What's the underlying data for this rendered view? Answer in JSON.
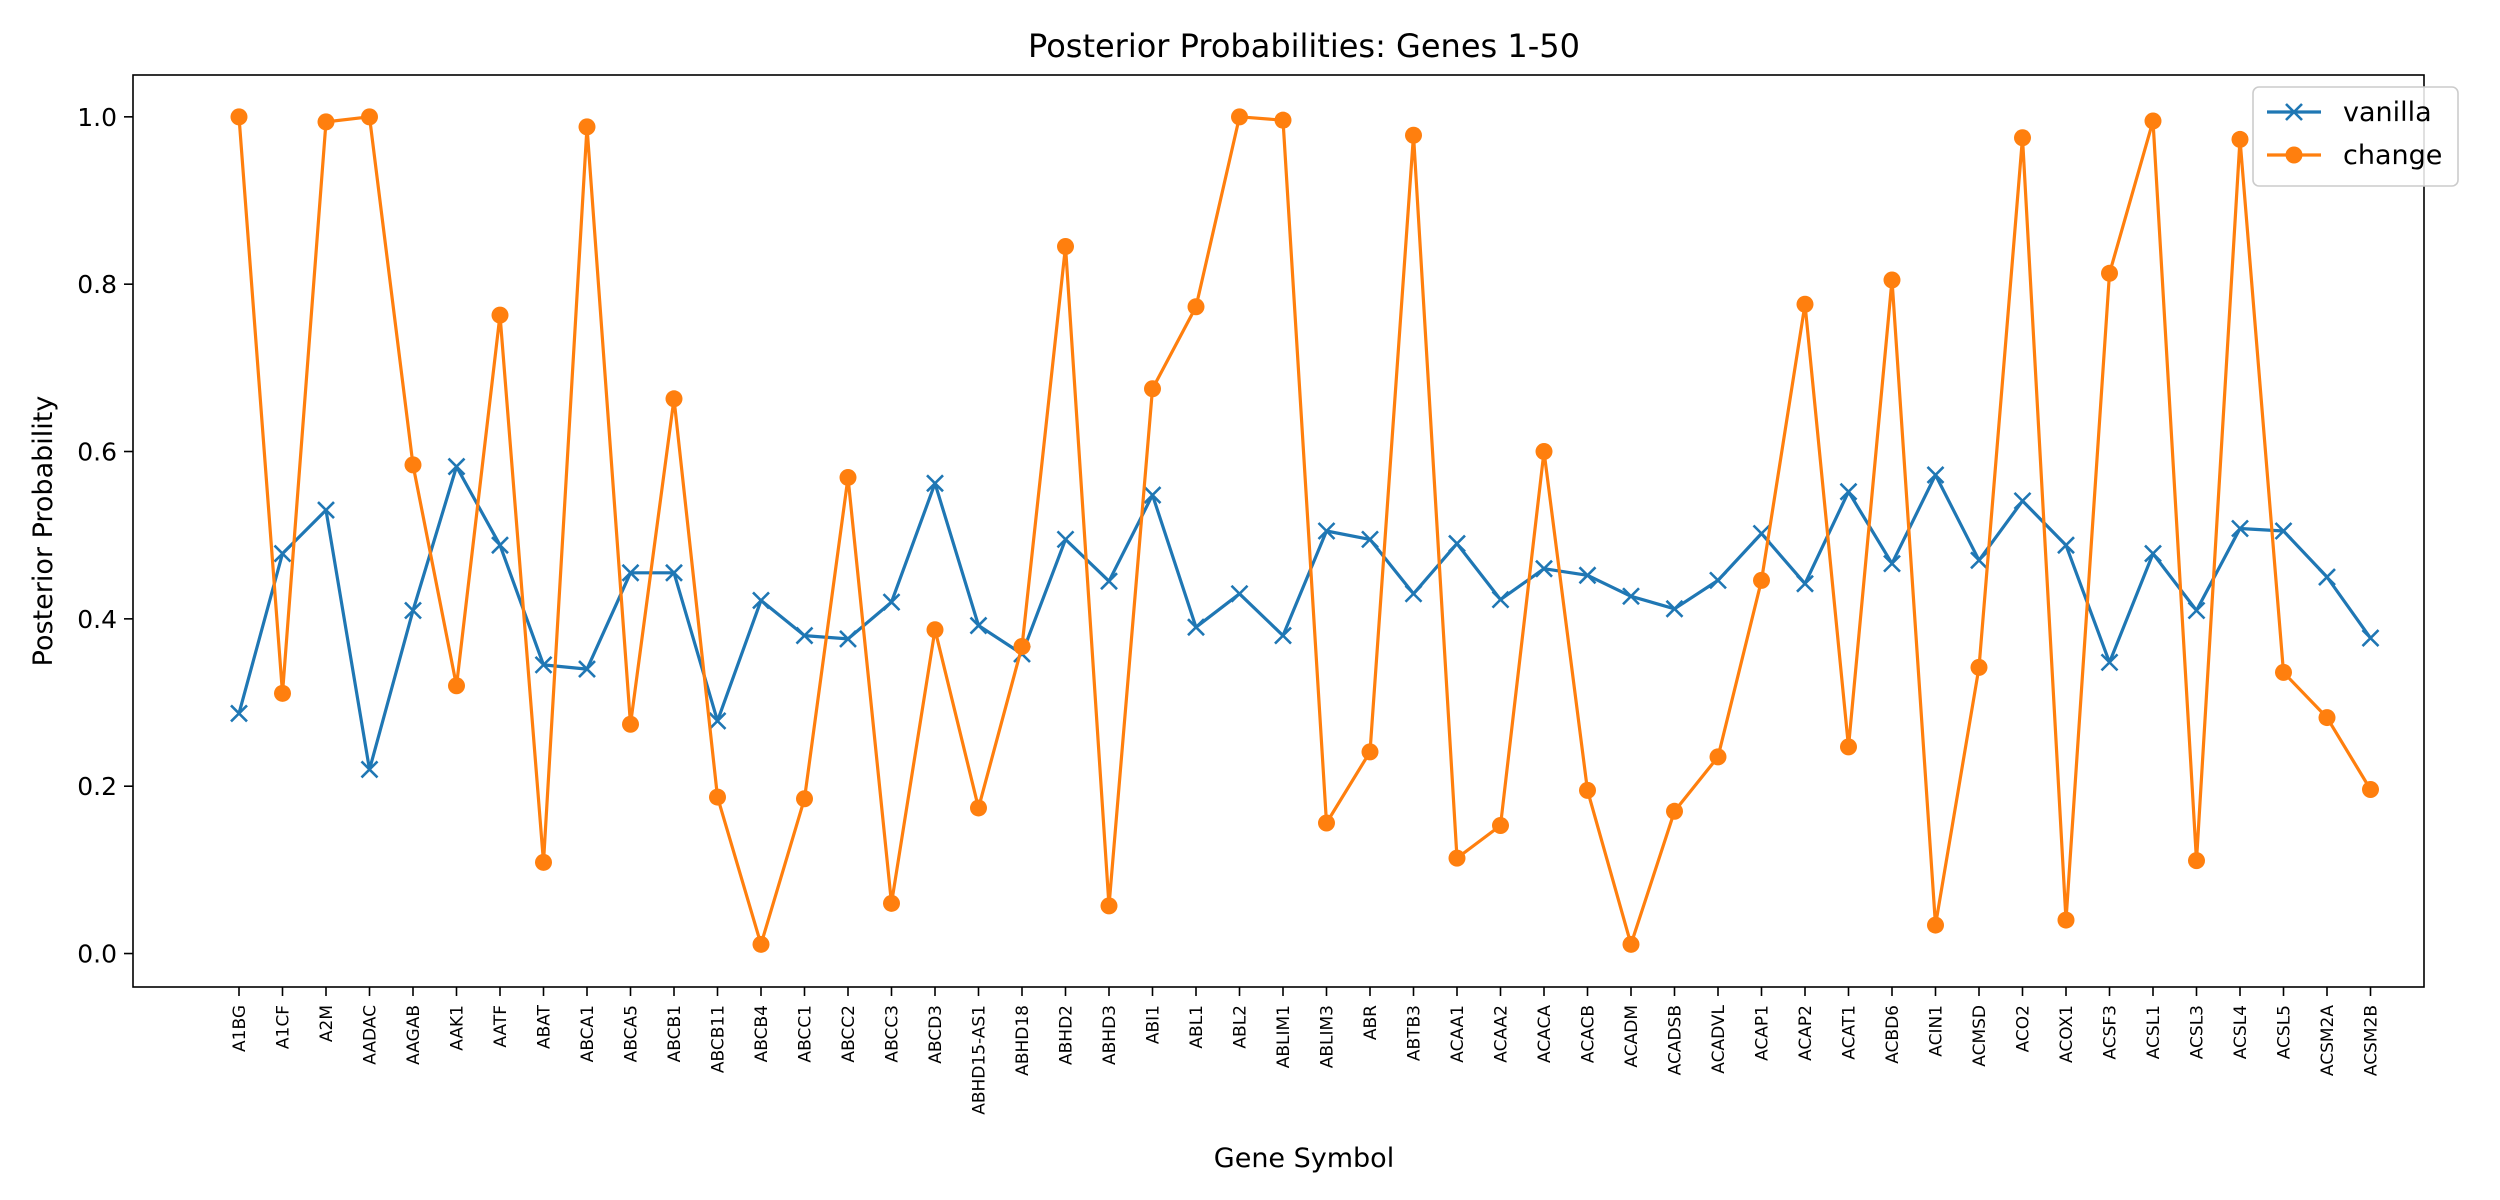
{
  "chart_data": {
    "type": "line",
    "title": "Posterior Probabilities: Genes 1-50",
    "xlabel": "Gene Symbol",
    "ylabel": "Posterior Probability",
    "ylim": [
      -0.04,
      1.05
    ],
    "yticks": [
      "0.0",
      "0.2",
      "0.4",
      "0.6",
      "0.8",
      "1.0"
    ],
    "grid": false,
    "legend_position": "top-right",
    "categories": [
      "A1BG",
      "A1CF",
      "A2M",
      "AADAC",
      "AAGAB",
      "AAK1",
      "AATF",
      "ABAT",
      "ABCA1",
      "ABCA5",
      "ABCB1",
      "ABCB11",
      "ABCB4",
      "ABCC1",
      "ABCC2",
      "ABCC3",
      "ABCD3",
      "ABHD15-AS1",
      "ABHD18",
      "ABHD2",
      "ABHD3",
      "ABI1",
      "ABL1",
      "ABL2",
      "ABLIM1",
      "ABLIM3",
      "ABR",
      "ABTB3",
      "ACAA1",
      "ACAA2",
      "ACACA",
      "ACACB",
      "ACADM",
      "ACADSB",
      "ACADVL",
      "ACAP1",
      "ACAP2",
      "ACAT1",
      "ACBD6",
      "ACIN1",
      "ACMSD",
      "ACO2",
      "ACOX1",
      "ACSF3",
      "ACSL1",
      "ACSL3",
      "ACSL4",
      "ACSL5",
      "ACSM2A",
      "ACSM2B"
    ],
    "series": [
      {
        "name": "vanilla",
        "color": "#1f77b4",
        "marker": "x",
        "values": [
          0.287,
          0.478,
          0.53,
          0.22,
          0.41,
          0.582,
          0.488,
          0.345,
          0.34,
          0.455,
          0.455,
          0.278,
          0.422,
          0.38,
          0.376,
          0.42,
          0.562,
          0.392,
          0.358,
          0.495,
          0.445,
          0.548,
          0.39,
          0.43,
          0.38,
          0.505,
          0.495,
          0.43,
          0.49,
          0.423,
          0.46,
          0.452,
          0.427,
          0.412,
          0.446,
          0.502,
          0.442,
          0.552,
          0.466,
          0.572,
          0.47,
          0.541,
          0.488,
          0.348,
          0.478,
          0.41,
          0.508,
          0.505,
          0.45,
          0.377
        ]
      },
      {
        "name": "change",
        "color": "#ff7f0e",
        "marker": "o",
        "values": [
          1.0,
          0.311,
          0.994,
          1.0,
          0.584,
          0.32,
          0.763,
          0.109,
          0.988,
          0.274,
          0.663,
          0.187,
          0.011,
          0.185,
          0.569,
          0.06,
          0.387,
          0.174,
          0.367,
          0.845,
          0.057,
          0.675,
          0.773,
          1.0,
          0.996,
          0.156,
          0.241,
          0.978,
          0.114,
          0.153,
          0.6,
          0.195,
          0.011,
          0.17,
          0.235,
          0.446,
          0.776,
          0.247,
          0.805,
          0.034,
          0.342,
          0.975,
          0.04,
          0.813,
          0.995,
          0.111,
          0.973,
          0.336,
          0.282,
          0.196
        ]
      }
    ]
  }
}
